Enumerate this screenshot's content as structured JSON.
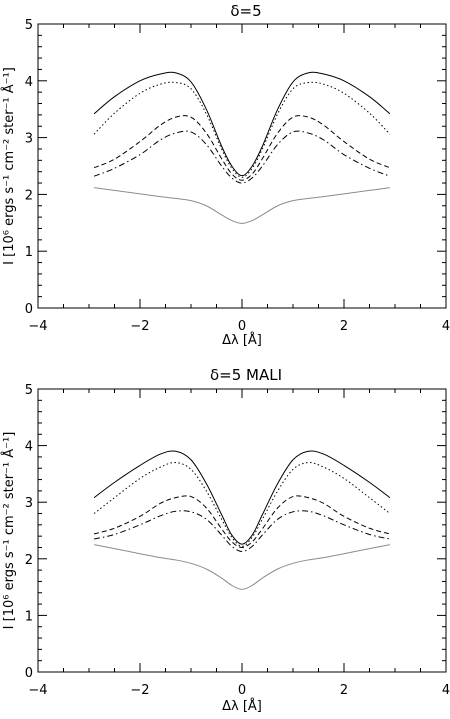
{
  "chart_data": [
    {
      "type": "line",
      "title": "δ=5",
      "xlabel": "Δλ [Å]",
      "ylabel": "I [10⁶ ergs s⁻¹ cm⁻² ster⁻¹ Å⁻¹]",
      "xlim": [
        -4,
        4
      ],
      "ylim": [
        0,
        5
      ],
      "xticks": [
        -4,
        -2,
        0,
        2,
        4
      ],
      "yticks": [
        0,
        1,
        2,
        3,
        4,
        5
      ],
      "grid": false,
      "x": [
        -2.9,
        -2.5,
        -2.0,
        -1.6,
        -1.3,
        -1.0,
        -0.7,
        -0.4,
        -0.2,
        0,
        0.2,
        0.4,
        0.7,
        1.0,
        1.3,
        1.6,
        2.0,
        2.5,
        2.9
      ],
      "series": [
        {
          "style": "solid",
          "color": "#000000",
          "values": [
            3.42,
            3.72,
            4.0,
            4.12,
            4.14,
            3.98,
            3.5,
            2.85,
            2.5,
            2.33,
            2.5,
            2.85,
            3.5,
            3.98,
            4.14,
            4.12,
            4.0,
            3.72,
            3.42
          ]
        },
        {
          "style": "dotted",
          "color": "#000000",
          "values": [
            3.06,
            3.43,
            3.78,
            3.94,
            3.97,
            3.86,
            3.42,
            2.8,
            2.46,
            2.3,
            2.46,
            2.8,
            3.42,
            3.86,
            3.97,
            3.94,
            3.78,
            3.43,
            3.06
          ]
        },
        {
          "style": "dashed",
          "color": "#000000",
          "values": [
            2.47,
            2.62,
            2.93,
            3.22,
            3.36,
            3.36,
            3.08,
            2.63,
            2.36,
            2.25,
            2.36,
            2.63,
            3.08,
            3.36,
            3.36,
            3.22,
            2.93,
            2.62,
            2.47
          ]
        },
        {
          "style": "dashdot",
          "color": "#000000",
          "values": [
            2.32,
            2.46,
            2.7,
            2.96,
            3.08,
            3.1,
            2.88,
            2.5,
            2.29,
            2.2,
            2.29,
            2.5,
            2.88,
            3.1,
            3.08,
            2.96,
            2.7,
            2.46,
            2.32
          ]
        },
        {
          "style": "solid",
          "color": "#8c8c8c",
          "values": [
            2.12,
            2.07,
            2.01,
            1.96,
            1.93,
            1.89,
            1.8,
            1.64,
            1.54,
            1.49,
            1.54,
            1.64,
            1.8,
            1.89,
            1.93,
            1.96,
            2.01,
            2.07,
            2.12
          ]
        }
      ]
    },
    {
      "type": "line",
      "title": "δ=5  MALI",
      "xlabel": "Δλ [Å]",
      "ylabel": "I [10⁶ ergs s⁻¹ cm⁻² ster⁻¹ Å⁻¹]",
      "xlim": [
        -4,
        4
      ],
      "ylim": [
        0,
        5
      ],
      "xticks": [
        -4,
        -2,
        0,
        2,
        4
      ],
      "yticks": [
        0,
        1,
        2,
        3,
        4,
        5
      ],
      "grid": false,
      "x": [
        -2.9,
        -2.5,
        -2.0,
        -1.6,
        -1.3,
        -1.0,
        -0.7,
        -0.4,
        -0.2,
        0,
        0.2,
        0.4,
        0.7,
        1.0,
        1.3,
        1.6,
        2.0,
        2.5,
        2.9
      ],
      "series": [
        {
          "style": "solid",
          "color": "#000000",
          "values": [
            3.08,
            3.35,
            3.65,
            3.85,
            3.9,
            3.75,
            3.33,
            2.78,
            2.42,
            2.26,
            2.42,
            2.78,
            3.33,
            3.75,
            3.9,
            3.85,
            3.65,
            3.35,
            3.08
          ]
        },
        {
          "style": "dotted",
          "color": "#000000",
          "values": [
            2.8,
            3.08,
            3.42,
            3.62,
            3.7,
            3.58,
            3.2,
            2.7,
            2.38,
            2.22,
            2.38,
            2.7,
            3.2,
            3.58,
            3.7,
            3.62,
            3.42,
            3.08,
            2.8
          ]
        },
        {
          "style": "dashed",
          "color": "#000000",
          "values": [
            2.44,
            2.54,
            2.75,
            2.98,
            3.08,
            3.1,
            2.9,
            2.53,
            2.3,
            2.2,
            2.3,
            2.53,
            2.9,
            3.1,
            3.08,
            2.98,
            2.75,
            2.54,
            2.44
          ]
        },
        {
          "style": "dashdot",
          "color": "#000000",
          "values": [
            2.35,
            2.43,
            2.6,
            2.76,
            2.84,
            2.83,
            2.7,
            2.42,
            2.22,
            2.13,
            2.22,
            2.42,
            2.7,
            2.83,
            2.84,
            2.76,
            2.6,
            2.43,
            2.35
          ]
        },
        {
          "style": "solid",
          "color": "#8c8c8c",
          "values": [
            2.25,
            2.18,
            2.09,
            2.02,
            1.98,
            1.92,
            1.82,
            1.66,
            1.53,
            1.46,
            1.53,
            1.66,
            1.82,
            1.92,
            1.98,
            2.02,
            2.09,
            2.18,
            2.25
          ]
        }
      ]
    }
  ]
}
